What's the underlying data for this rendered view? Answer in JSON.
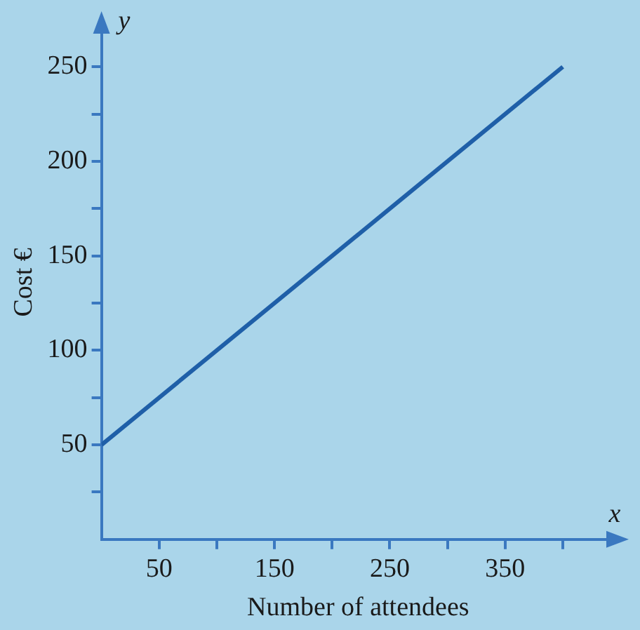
{
  "chart_data": {
    "type": "line",
    "xlabel": "Number of attendees",
    "ylabel": "Cost €",
    "annotations": [
      "x",
      "y"
    ],
    "x": [
      0,
      400
    ],
    "series": [
      {
        "color": "#1f5fa8",
        "values": [
          50,
          250
        ]
      }
    ],
    "xlim": [
      0,
      445
    ],
    "ylim": [
      0,
      272
    ],
    "xticks": [
      50,
      {
        "value": 100,
        "label": null
      },
      150,
      {
        "value": 200,
        "label": null
      },
      250,
      {
        "value": 300,
        "label": null
      },
      350,
      {
        "value": 400,
        "label": null
      }
    ],
    "yticks": [
      {
        "value": 25,
        "label": null
      },
      50,
      {
        "value": 75,
        "label": null
      },
      100,
      {
        "value": 125,
        "label": null
      },
      150,
      {
        "value": 175,
        "label": null
      },
      200,
      {
        "value": 225,
        "label": null
      },
      250
    ],
    "grid": false,
    "legend": false,
    "marker": "none",
    "line_style": "solid"
  }
}
